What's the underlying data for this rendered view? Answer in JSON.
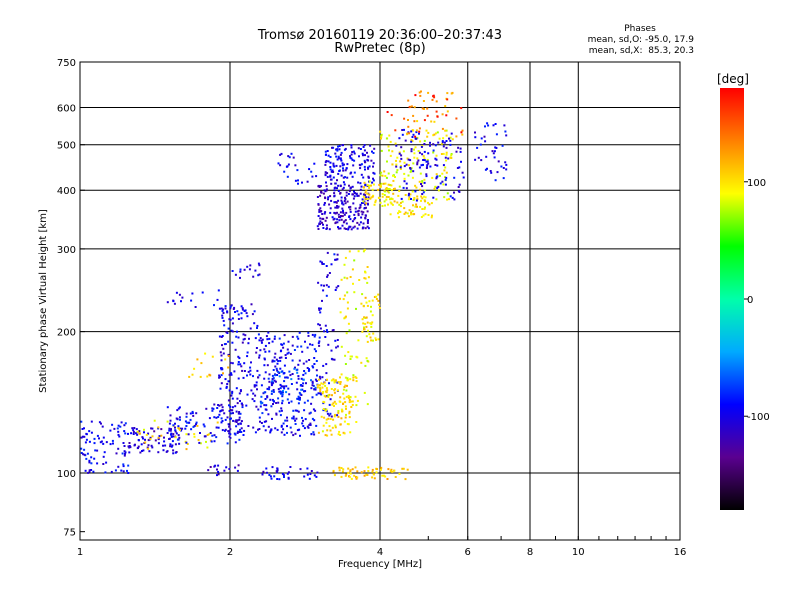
{
  "chart_data": {
    "type": "scatter",
    "title": "Tromsø 20160119 20:36:00–20:37:43",
    "subtitle": "RwPretec (8p)",
    "xlabel": "Frequency [MHz]",
    "ylabel": "Stationary phase Virtual Height [km]",
    "x_scale": "log",
    "y_scale": "log",
    "xlim": [
      1,
      16
    ],
    "ylim": [
      72,
      750
    ],
    "x_ticks": [
      1,
      2,
      4,
      6,
      8,
      10,
      16
    ],
    "y_ticks": [
      75,
      100,
      200,
      300,
      400,
      500,
      600,
      750
    ],
    "grid": true,
    "stats": {
      "heading": "Phases",
      "line1": "mean, sd,O: -95.0, 17.9",
      "line2": "mean, sd,X:  85.3, 20.3"
    },
    "colorbar": {
      "label": "[deg]",
      "range": [
        -180,
        180
      ],
      "ticks": [
        100,
        0,
        -100
      ],
      "colormap": [
        "#000000",
        "#5a0090",
        "#0000ff",
        "#00aaff",
        "#00ffaa",
        "#00ff00",
        "#ffff00",
        "#ff8000",
        "#ff0000"
      ]
    },
    "clusters": [
      {
        "x": [
          1.0,
          1.25
        ],
        "y": [
          100,
          130
        ],
        "phase": -95,
        "n": 90
      },
      {
        "x": [
          1.25,
          1.6
        ],
        "y": [
          110,
          125
        ],
        "phase": -110,
        "n": 80
      },
      {
        "x": [
          1.3,
          1.9
        ],
        "y": [
          112,
          130
        ],
        "phase": 100,
        "n": 35
      },
      {
        "x": [
          1.5,
          2.1
        ],
        "y": [
          115,
          140
        ],
        "phase": -95,
        "n": 110
      },
      {
        "x": [
          1.9,
          2.3
        ],
        "y": [
          120,
          230
        ],
        "phase": -100,
        "n": 200
      },
      {
        "x": [
          2.3,
          3.0
        ],
        "y": [
          120,
          200
        ],
        "phase": -95,
        "n": 260
      },
      {
        "x": [
          2.3,
          3.0
        ],
        "y": [
          140,
          170
        ],
        "phase": -70,
        "n": 50
      },
      {
        "x": [
          3.0,
          3.3
        ],
        "y": [
          130,
          300
        ],
        "phase": -100,
        "n": 80
      },
      {
        "x": [
          3.0,
          3.6
        ],
        "y": [
          120,
          160
        ],
        "phase": 100,
        "n": 130
      },
      {
        "x": [
          3.3,
          3.8
        ],
        "y": [
          140,
          300
        ],
        "phase": 90,
        "n": 70
      },
      {
        "x": [
          3.7,
          4.0
        ],
        "y": [
          190,
          240
        ],
        "phase": 100,
        "n": 40
      },
      {
        "x": [
          3.0,
          3.8
        ],
        "y": [
          330,
          410
        ],
        "phase": -110,
        "n": 220
      },
      {
        "x": [
          3.1,
          3.9
        ],
        "y": [
          410,
          500
        ],
        "phase": -100,
        "n": 140
      },
      {
        "x": [
          3.7,
          4.3
        ],
        "y": [
          370,
          420
        ],
        "phase": 100,
        "n": 60
      },
      {
        "x": [
          4.0,
          5.6
        ],
        "y": [
          380,
          540
        ],
        "phase": 90,
        "n": 140
      },
      {
        "x": [
          4.3,
          5.9
        ],
        "y": [
          380,
          540
        ],
        "phase": -100,
        "n": 120
      },
      {
        "x": [
          4.2,
          5.2
        ],
        "y": [
          350,
          390
        ],
        "phase": 100,
        "n": 50
      },
      {
        "x": [
          4.5,
          6.0
        ],
        "y": [
          520,
          650
        ],
        "phase": 120,
        "n": 40
      },
      {
        "x": [
          4.1,
          6.0
        ],
        "y": [
          520,
          650
        ],
        "phase": 170,
        "n": 20
      },
      {
        "x": [
          6.2,
          7.2
        ],
        "y": [
          420,
          560
        ],
        "phase": -100,
        "n": 40
      },
      {
        "x": [
          2.3,
          3.0
        ],
        "y": [
          97,
          103
        ],
        "phase": -100,
        "n": 35
      },
      {
        "x": [
          3.2,
          4.6
        ],
        "y": [
          97,
          103
        ],
        "phase": 110,
        "n": 60
      },
      {
        "x": [
          1.8,
          2.1
        ],
        "y": [
          98,
          104
        ],
        "phase": -110,
        "n": 15
      },
      {
        "x": [
          1.6,
          2.0
        ],
        "y": [
          160,
          180
        ],
        "phase": 110,
        "n": 15
      },
      {
        "x": [
          1.5,
          1.9
        ],
        "y": [
          225,
          245
        ],
        "phase": -100,
        "n": 15
      },
      {
        "x": [
          2.0,
          2.3
        ],
        "y": [
          260,
          280
        ],
        "phase": -100,
        "n": 15
      },
      {
        "x": [
          2.5,
          3.0
        ],
        "y": [
          410,
          480
        ],
        "phase": -100,
        "n": 25
      }
    ]
  }
}
